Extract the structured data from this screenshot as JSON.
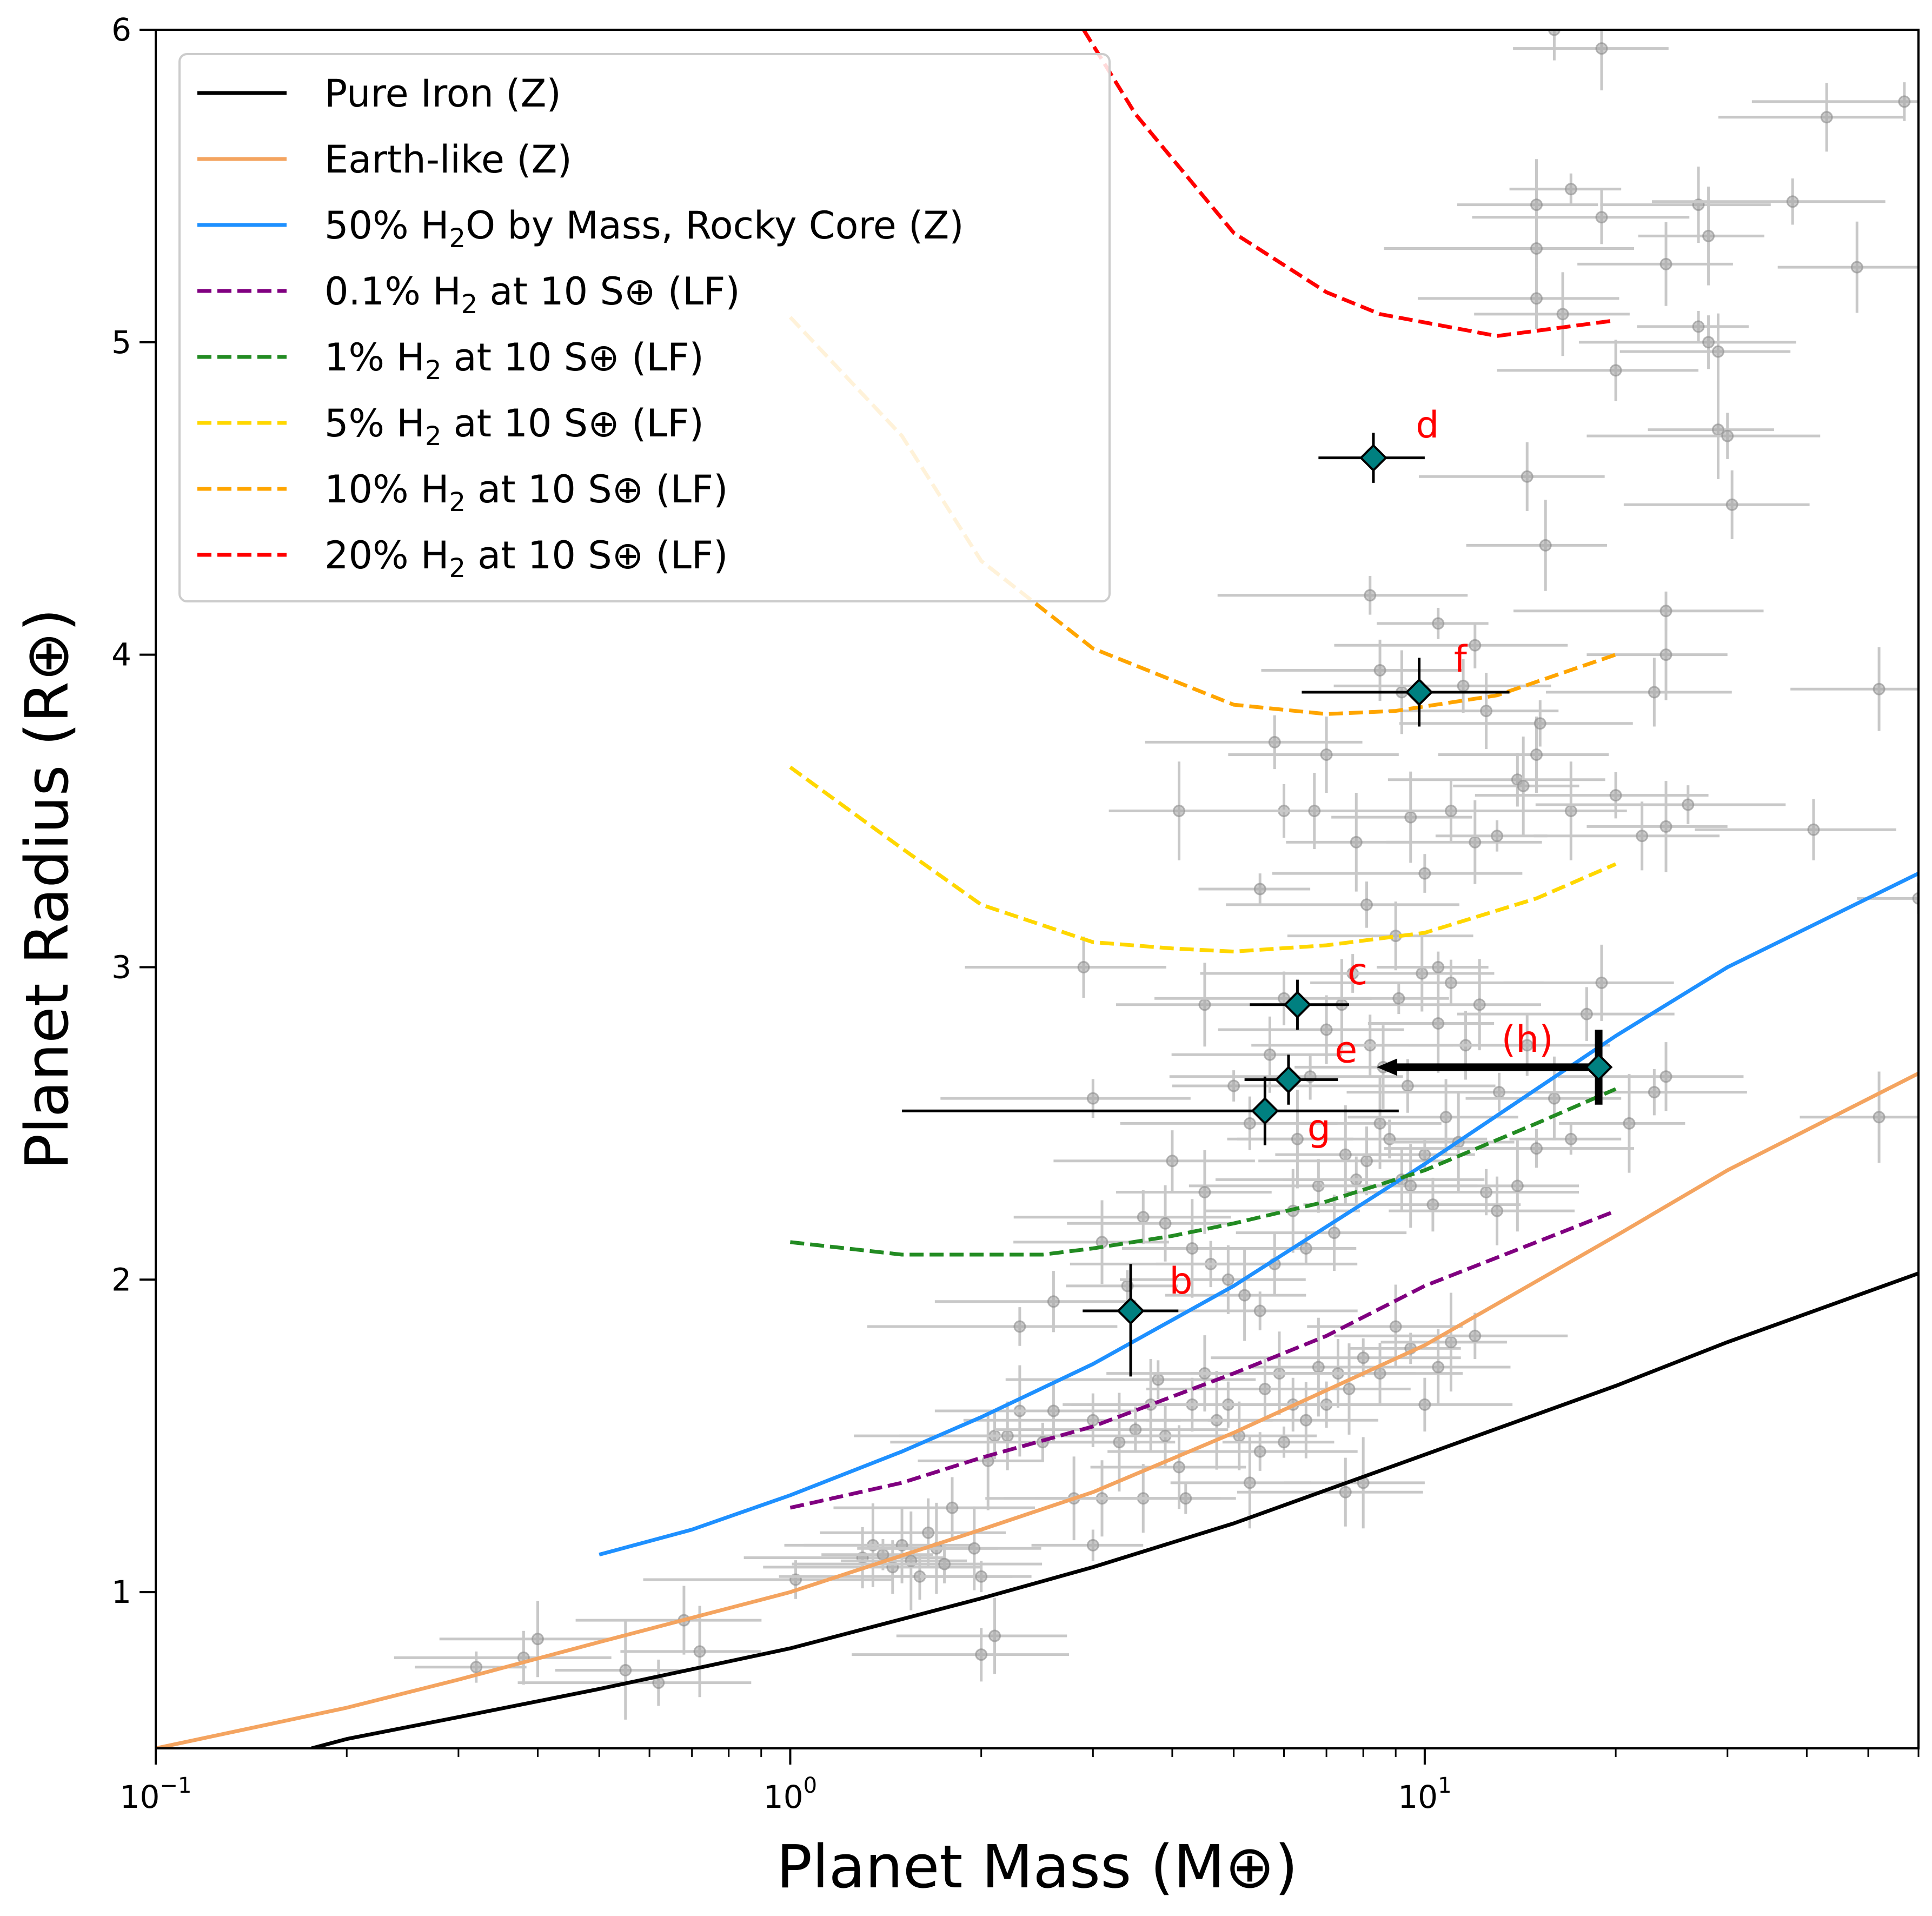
{
  "chart_data": {
    "type": "scatter",
    "xlabel": "Planet Mass (M⊕)",
    "ylabel": "Planet Radius (R⊕)",
    "xscale": "log",
    "xlim": [
      0.1,
      60
    ],
    "ylim": [
      0.5,
      6
    ],
    "x_ticks": [
      {
        "value": 0.1,
        "base": "10",
        "exp": "−1"
      },
      {
        "value": 1,
        "base": "10",
        "exp": "0"
      },
      {
        "value": 10,
        "base": "10",
        "exp": "1"
      }
    ],
    "y_ticks": [
      "1",
      "2",
      "3",
      "4",
      "5",
      "6"
    ],
    "grid": false,
    "legend_position": "top-left",
    "legend": [
      {
        "prefix": "Pure Iron (Z)",
        "sub": "",
        "suffix": "",
        "color": "#000000",
        "dash": "solid"
      },
      {
        "prefix": "Earth-like (Z)",
        "sub": "",
        "suffix": "",
        "color": "#f4a460",
        "dash": "solid"
      },
      {
        "prefix": "50% H",
        "sub": "2",
        "suffix": "O by Mass, Rocky Core (Z)",
        "color": "#1e90ff",
        "dash": "solid"
      },
      {
        "prefix": "0.1% H",
        "sub": "2",
        "suffix": " at 10 S⊕ (LF)",
        "color": "#800080",
        "dash": "dashed"
      },
      {
        "prefix": "1% H",
        "sub": "2",
        "suffix": " at 10 S⊕ (LF)",
        "color": "#228b22",
        "dash": "dashed"
      },
      {
        "prefix": "5% H",
        "sub": "2",
        "suffix": " at 10 S⊕ (LF)",
        "color": "#ffd700",
        "dash": "dashed"
      },
      {
        "prefix": "10% H",
        "sub": "2",
        "suffix": " at 10 S⊕ (LF)",
        "color": "#ffa500",
        "dash": "dashed"
      },
      {
        "prefix": "20% H",
        "sub": "2",
        "suffix": " at 10 S⊕ (LF)",
        "color": "#ff0000",
        "dash": "dashed"
      }
    ],
    "curves": [
      {
        "color": "#000000",
        "dash": false,
        "points": [
          [
            0.176,
            0.5
          ],
          [
            0.2,
            0.53
          ],
          [
            0.3,
            0.6
          ],
          [
            0.5,
            0.69
          ],
          [
            1,
            0.82
          ],
          [
            2,
            0.98
          ],
          [
            3,
            1.08
          ],
          [
            5,
            1.22
          ],
          [
            10,
            1.44
          ],
          [
            20,
            1.66
          ],
          [
            30,
            1.8
          ],
          [
            60,
            2.02
          ]
        ]
      },
      {
        "color": "#f4a460",
        "dash": false,
        "points": [
          [
            0.1,
            0.5
          ],
          [
            0.2,
            0.63
          ],
          [
            0.3,
            0.72
          ],
          [
            0.5,
            0.84
          ],
          [
            1,
            1.0
          ],
          [
            2,
            1.2
          ],
          [
            3,
            1.32
          ],
          [
            5,
            1.51
          ],
          [
            10,
            1.79
          ],
          [
            20,
            2.14
          ],
          [
            30,
            2.35
          ],
          [
            60,
            2.66
          ]
        ]
      },
      {
        "color": "#1e90ff",
        "dash": false,
        "points": [
          [
            0.5,
            1.12
          ],
          [
            0.7,
            1.2
          ],
          [
            1,
            1.31
          ],
          [
            1.5,
            1.45
          ],
          [
            2,
            1.56
          ],
          [
            3,
            1.73
          ],
          [
            5,
            1.98
          ],
          [
            10,
            2.37
          ],
          [
            20,
            2.78
          ],
          [
            30,
            3.0
          ],
          [
            60,
            3.3
          ]
        ]
      },
      {
        "color": "#800080",
        "dash": true,
        "points": [
          [
            1,
            1.27
          ],
          [
            1.5,
            1.35
          ],
          [
            2,
            1.43
          ],
          [
            3,
            1.53
          ],
          [
            5,
            1.7
          ],
          [
            7,
            1.82
          ],
          [
            10,
            1.98
          ],
          [
            15,
            2.12
          ],
          [
            20,
            2.22
          ]
        ]
      },
      {
        "color": "#228b22",
        "dash": true,
        "points": [
          [
            1,
            2.12
          ],
          [
            1.5,
            2.08
          ],
          [
            2,
            2.08
          ],
          [
            2.5,
            2.08
          ],
          [
            3,
            2.1
          ],
          [
            4,
            2.14
          ],
          [
            5,
            2.18
          ],
          [
            7,
            2.25
          ],
          [
            10,
            2.35
          ],
          [
            15,
            2.5
          ],
          [
            20,
            2.61
          ]
        ]
      },
      {
        "color": "#ffd700",
        "dash": true,
        "points": [
          [
            1,
            3.64
          ],
          [
            1.5,
            3.38
          ],
          [
            2,
            3.2
          ],
          [
            3,
            3.08
          ],
          [
            4,
            3.06
          ],
          [
            5,
            3.05
          ],
          [
            7,
            3.07
          ],
          [
            10,
            3.11
          ],
          [
            15,
            3.22
          ],
          [
            20,
            3.33
          ]
        ]
      },
      {
        "color": "#ffa500",
        "dash": true,
        "points": [
          [
            1,
            5.08
          ],
          [
            1.5,
            4.7
          ],
          [
            2,
            4.3
          ],
          [
            3,
            4.02
          ],
          [
            5,
            3.84
          ],
          [
            7,
            3.81
          ],
          [
            9,
            3.82
          ],
          [
            13,
            3.87
          ],
          [
            20,
            4.0
          ]
        ]
      },
      {
        "color": "#ff0000",
        "dash": true,
        "points": [
          [
            2.9,
            6.0
          ],
          [
            3.5,
            5.73
          ],
          [
            5,
            5.35
          ],
          [
            7,
            5.16
          ],
          [
            8.5,
            5.09
          ],
          [
            13,
            5.02
          ],
          [
            20,
            5.07
          ]
        ]
      }
    ],
    "highlight_points": [
      {
        "label": "b",
        "mass": 3.44,
        "radius": 1.9,
        "mass_err": [
          0.55,
          0.65
        ],
        "radius_err": [
          0.21,
          0.15
        ],
        "label_dx": 0.4,
        "label_dy": 0.09
      },
      {
        "label": "c",
        "mass": 6.3,
        "radius": 2.88,
        "mass_err": [
          1.0,
          1.3
        ],
        "radius_err": [
          0.08,
          0.08
        ],
        "label_dx": 0.55,
        "label_dy": 0.1
      },
      {
        "label": "d",
        "mass": 8.3,
        "radius": 4.63,
        "mass_err": [
          1.5,
          1.7
        ],
        "radius_err": [
          0.08,
          0.08
        ],
        "label_dx": 0.45,
        "label_dy": 0.1
      },
      {
        "label": "e",
        "mass": 6.1,
        "radius": 2.64,
        "mass_err": [
          0.9,
          1.2
        ],
        "radius_err": [
          0.08,
          0.08
        ],
        "label_dx": 0.5,
        "label_dy": 0.09
      },
      {
        "label": "f",
        "mass": 9.8,
        "radius": 3.88,
        "mass_err": [
          3.4,
          3.8
        ],
        "radius_err": [
          0.11,
          0.11
        ],
        "label_dx": 0.35,
        "label_dy": 0.1
      },
      {
        "label": "g",
        "mass": 5.6,
        "radius": 2.54,
        "mass_err": [
          4.1,
          3.5
        ],
        "radius_err": [
          0.11,
          0.11
        ],
        "label_dx": 0.45,
        "label_dy": -0.06
      }
    ],
    "upper_limit": {
      "label": "(h)",
      "mass": 18.8,
      "radius": 2.68,
      "arrow_to_mass": 8.4,
      "radius_err": [
        0.12,
        0.12
      ]
    },
    "background_points": [
      [
        0.32,
        0.76
      ],
      [
        0.38,
        0.79
      ],
      [
        0.4,
        0.85
      ],
      [
        0.55,
        0.75
      ],
      [
        0.62,
        0.71
      ],
      [
        0.68,
        0.91
      ],
      [
        0.72,
        0.81
      ],
      [
        1.02,
        1.04
      ],
      [
        1.3,
        1.11
      ],
      [
        1.35,
        1.15
      ],
      [
        1.4,
        1.12
      ],
      [
        1.45,
        1.08
      ],
      [
        1.5,
        1.15
      ],
      [
        1.55,
        1.1
      ],
      [
        1.6,
        1.05
      ],
      [
        1.65,
        1.19
      ],
      [
        1.7,
        1.14
      ],
      [
        1.75,
        1.09
      ],
      [
        1.8,
        1.27
      ],
      [
        1.95,
        1.14
      ],
      [
        2.0,
        1.05
      ],
      [
        2.0,
        0.8
      ],
      [
        2.1,
        0.86
      ],
      [
        2.05,
        1.42
      ],
      [
        2.1,
        1.5
      ],
      [
        2.2,
        1.5
      ],
      [
        2.3,
        1.58
      ],
      [
        2.5,
        1.48
      ],
      [
        2.6,
        1.58
      ],
      [
        2.8,
        1.3
      ],
      [
        3.0,
        1.15
      ],
      [
        3.0,
        1.55
      ],
      [
        3.1,
        1.3
      ],
      [
        3.3,
        1.48
      ],
      [
        3.5,
        1.52
      ],
      [
        3.6,
        1.3
      ],
      [
        3.7,
        1.6
      ],
      [
        3.8,
        1.68
      ],
      [
        3.9,
        1.5
      ],
      [
        4.1,
        1.4
      ],
      [
        4.2,
        1.3
      ],
      [
        4.3,
        1.6
      ],
      [
        4.5,
        1.7
      ],
      [
        4.7,
        1.55
      ],
      [
        4.9,
        1.6
      ],
      [
        5.1,
        1.5
      ],
      [
        5.3,
        1.35
      ],
      [
        5.5,
        1.45
      ],
      [
        5.6,
        1.65
      ],
      [
        5.9,
        1.7
      ],
      [
        6.0,
        1.48
      ],
      [
        6.2,
        1.6
      ],
      [
        6.5,
        1.55
      ],
      [
        6.8,
        1.72
      ],
      [
        7.0,
        1.6
      ],
      [
        7.3,
        1.7
      ],
      [
        7.6,
        1.65
      ],
      [
        8.0,
        1.75
      ],
      [
        8.5,
        1.7
      ],
      [
        9.0,
        1.85
      ],
      [
        9.5,
        1.78
      ],
      [
        10,
        1.6
      ],
      [
        10.5,
        1.72
      ],
      [
        11,
        1.8
      ],
      [
        12,
        1.82
      ],
      [
        7.5,
        1.32
      ],
      [
        8,
        1.35
      ],
      [
        2.3,
        1.85
      ],
      [
        2.6,
        1.93
      ],
      [
        3.1,
        2.12
      ],
      [
        3.4,
        1.98
      ],
      [
        3.6,
        2.2
      ],
      [
        3.9,
        2.18
      ],
      [
        4.3,
        2.1
      ],
      [
        4.6,
        2.05
      ],
      [
        4.9,
        2.0
      ],
      [
        5.2,
        1.95
      ],
      [
        5.5,
        1.9
      ],
      [
        5.8,
        2.05
      ],
      [
        6.2,
        2.22
      ],
      [
        6.5,
        2.1
      ],
      [
        6.8,
        2.3
      ],
      [
        7.2,
        2.15
      ],
      [
        7.5,
        2.4
      ],
      [
        7.8,
        2.32
      ],
      [
        8.1,
        2.38
      ],
      [
        8.5,
        2.5
      ],
      [
        8.8,
        2.45
      ],
      [
        9.2,
        2.32
      ],
      [
        9.5,
        2.3
      ],
      [
        10,
        2.4
      ],
      [
        10.3,
        2.24
      ],
      [
        10.8,
        2.52
      ],
      [
        11.3,
        2.44
      ],
      [
        12.5,
        2.28
      ],
      [
        13,
        2.22
      ],
      [
        14,
        2.3
      ],
      [
        15,
        2.42
      ],
      [
        4.0,
        2.38
      ],
      [
        4.5,
        2.28
      ],
      [
        5.0,
        2.62
      ],
      [
        5.3,
        2.5
      ],
      [
        5.7,
        2.72
      ],
      [
        6.3,
        2.45
      ],
      [
        6.6,
        2.65
      ],
      [
        7.0,
        2.8
      ],
      [
        7.4,
        2.88
      ],
      [
        7.7,
        2.98
      ],
      [
        8.2,
        2.75
      ],
      [
        8.6,
        2.68
      ],
      [
        9.1,
        2.9
      ],
      [
        9.4,
        2.62
      ],
      [
        9.9,
        2.98
      ],
      [
        10.5,
        2.82
      ],
      [
        11,
        2.95
      ],
      [
        11.6,
        2.75
      ],
      [
        12.2,
        2.88
      ],
      [
        13.1,
        2.6
      ],
      [
        14.5,
        2.75
      ],
      [
        16,
        2.58
      ],
      [
        17,
        2.45
      ],
      [
        18,
        2.85
      ],
      [
        19,
        2.95
      ],
      [
        21,
        2.5
      ],
      [
        23,
        2.6
      ],
      [
        24,
        2.65
      ],
      [
        52,
        2.52
      ],
      [
        3.0,
        2.58
      ],
      [
        2.9,
        3.0
      ],
      [
        4.5,
        2.88
      ],
      [
        5.5,
        3.25
      ],
      [
        6.0,
        3.5
      ],
      [
        6.7,
        3.5
      ],
      [
        7.8,
        3.4
      ],
      [
        8.1,
        3.2
      ],
      [
        9.0,
        3.1
      ],
      [
        9.5,
        3.48
      ],
      [
        10,
        3.3
      ],
      [
        11,
        3.5
      ],
      [
        12,
        3.4
      ],
      [
        13,
        3.42
      ],
      [
        14,
        3.6
      ],
      [
        15,
        3.68
      ],
      [
        17,
        3.5
      ],
      [
        20,
        3.55
      ],
      [
        22,
        3.42
      ],
      [
        24,
        3.45
      ],
      [
        26,
        3.52
      ],
      [
        8.5,
        3.95
      ],
      [
        9.2,
        3.88
      ],
      [
        10.5,
        4.1
      ],
      [
        11.5,
        3.9
      ],
      [
        12.5,
        3.82
      ],
      [
        14.3,
        3.58
      ],
      [
        15.2,
        3.78
      ],
      [
        23,
        3.88
      ],
      [
        24,
        4.0
      ],
      [
        24,
        4.14
      ],
      [
        41,
        3.44
      ],
      [
        52,
        3.89
      ],
      [
        60,
        3.22
      ],
      [
        5.8,
        3.72
      ],
      [
        7.0,
        3.68
      ],
      [
        4.1,
        3.5
      ],
      [
        12,
        4.03
      ],
      [
        14.5,
        4.57
      ],
      [
        15.5,
        4.35
      ],
      [
        8.2,
        4.19
      ],
      [
        20,
        4.91
      ],
      [
        24,
        5.25
      ],
      [
        27,
        5.05
      ],
      [
        28,
        5.0
      ],
      [
        29,
        4.97
      ],
      [
        29,
        4.72
      ],
      [
        30,
        4.7
      ],
      [
        30.5,
        4.48
      ],
      [
        15,
        5.44
      ],
      [
        15,
        5.3
      ],
      [
        15,
        5.14
      ],
      [
        16.5,
        5.09
      ],
      [
        17,
        5.49
      ],
      [
        19,
        5.4
      ],
      [
        27,
        5.44
      ],
      [
        28,
        5.34
      ],
      [
        38,
        5.45
      ],
      [
        43,
        5.72
      ],
      [
        48,
        5.24
      ],
      [
        57,
        5.77
      ],
      [
        16,
        6.0
      ],
      [
        19,
        5.94
      ],
      [
        10.5,
        3.0
      ],
      [
        6.0,
        2.9
      ]
    ]
  }
}
